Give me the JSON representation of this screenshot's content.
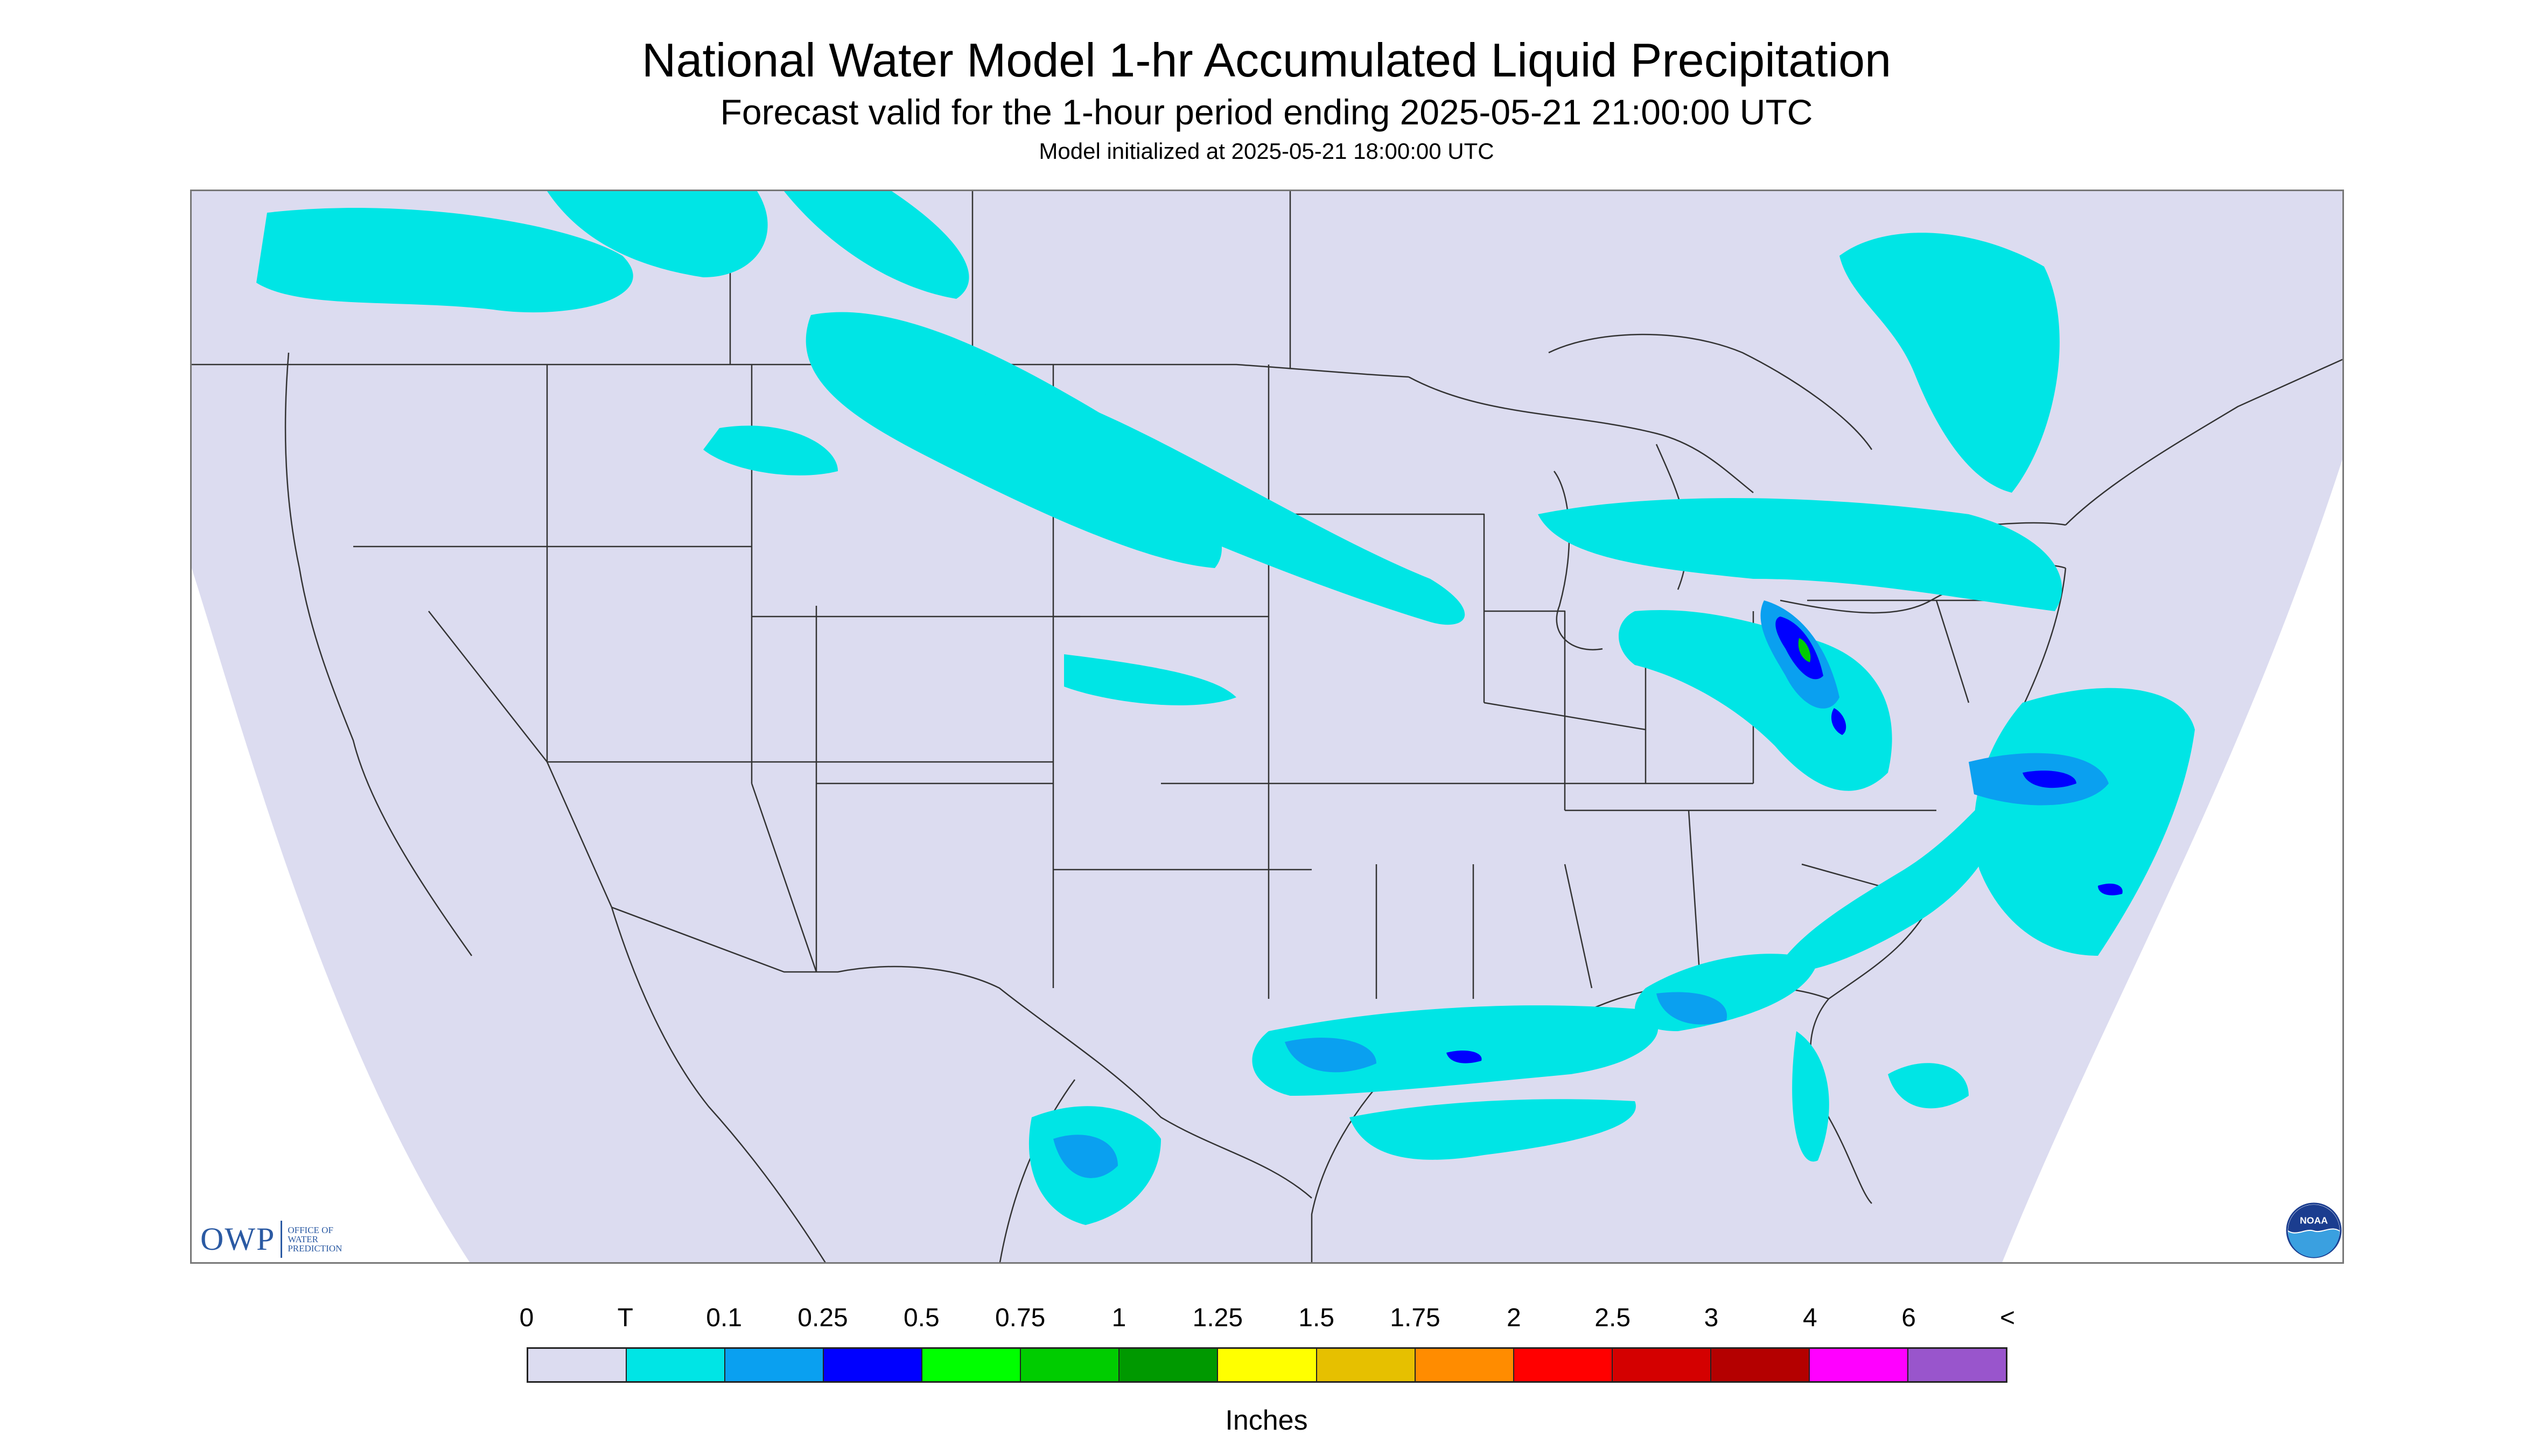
{
  "header": {
    "title": "National Water Model 1-hr Accumulated Liquid Precipitation",
    "subtitle": "Forecast valid for the 1-hour period ending 2025-05-21 21:00:00 UTC",
    "init": "Model initialized at 2025-05-21 18:00:00 UTC"
  },
  "logos": {
    "owp_mark": "OWP",
    "owp_lines": [
      "Office of",
      "Water",
      "Prediction"
    ],
    "noaa_text": "NOAA"
  },
  "legend": {
    "ticks": [
      "0",
      "T",
      "0.1",
      "0.25",
      "0.5",
      "0.75",
      "1",
      "1.25",
      "1.5",
      "1.75",
      "2",
      "2.5",
      "3",
      "4",
      "6",
      "<"
    ],
    "colors": [
      "#dcdcf0",
      "#00e5e5",
      "#0aa0f0",
      "#0000ff",
      "#00ff00",
      "#00cc00",
      "#009900",
      "#ffff00",
      "#e6c000",
      "#ff8c00",
      "#ff0000",
      "#d40000",
      "#b40000",
      "#ff00ff",
      "#9955cc"
    ],
    "units": "Inches"
  },
  "map": {
    "background_color": "#dcdcf0",
    "precip_trace_color": "#00e5e5",
    "precip_light_color": "#0aa0f0",
    "precip_moderate_color": "#0000ff",
    "precip_heavy_color": "#00cc00"
  }
}
